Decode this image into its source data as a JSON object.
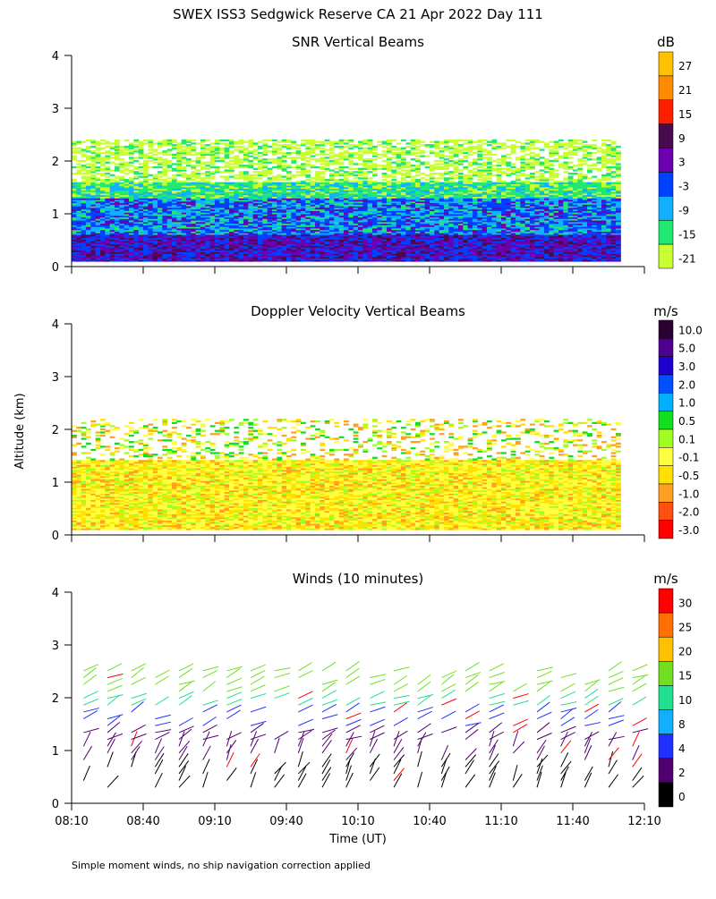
{
  "figure": {
    "title": "SWEX ISS3 Sedgwick Reserve CA  21 Apr 2022 Day 111",
    "footnote": "Simple moment winds, no ship navigation correction applied",
    "ylabel": "Altitude (km)",
    "xlabel": "Time (UT)"
  },
  "chart_data": [
    {
      "type": "heatmap",
      "title": "SNR Vertical Beams",
      "unit": "dB",
      "x_ticks": [
        "08:10",
        "08:40",
        "09:10",
        "09:40",
        "10:10",
        "10:40",
        "11:10",
        "11:40",
        "12:10"
      ],
      "xlim_minutes": [
        0,
        240
      ],
      "y_ticks": [
        "0",
        "1",
        "2",
        "3",
        "4"
      ],
      "ylim_km": [
        0,
        4
      ],
      "colorbar": {
        "labels": [
          "27",
          "21",
          "15",
          "9",
          "3",
          "-3",
          "-9",
          "-15",
          "-21"
        ],
        "colors": [
          "#ffc000",
          "#ff8c00",
          "#ff2000",
          "#4a0a50",
          "#6a00b0",
          "#0040ff",
          "#10b0ff",
          "#20e870",
          "#c8ff30"
        ]
      }
    },
    {
      "type": "heatmap",
      "title": "Doppler Velocity Vertical Beams",
      "unit": "m/s",
      "x_ticks": [
        "08:10",
        "08:40",
        "09:10",
        "09:40",
        "10:10",
        "10:40",
        "11:10",
        "11:40",
        "12:10"
      ],
      "xlim_minutes": [
        0,
        240
      ],
      "y_ticks": [
        "0",
        "1",
        "2",
        "3",
        "4"
      ],
      "ylim_km": [
        0,
        4
      ],
      "colorbar": {
        "labels": [
          "10.0",
          "5.0",
          "3.0",
          "2.0",
          "1.0",
          "0.5",
          "0.1",
          "-0.1",
          "-0.5",
          "-1.0",
          "-2.0",
          "-3.0"
        ],
        "colors": [
          "#2a0030",
          "#500090",
          "#2000d0",
          "#0050ff",
          "#00b0ff",
          "#10e020",
          "#a0ff20",
          "#ffff40",
          "#ffe000",
          "#ffa020",
          "#ff5010",
          "#ff0000"
        ]
      }
    },
    {
      "type": "scatter",
      "title": "Winds (10 minutes)",
      "unit": "m/s",
      "x_ticks": [
        "08:10",
        "08:40",
        "09:10",
        "09:40",
        "10:10",
        "10:40",
        "11:10",
        "11:40",
        "12:10"
      ],
      "xlim_minutes": [
        0,
        240
      ],
      "y_ticks": [
        "0",
        "1",
        "2",
        "3",
        "4"
      ],
      "ylim_km": [
        0,
        4
      ],
      "colorbar": {
        "labels": [
          "30",
          "25",
          "20",
          "15",
          "10",
          "8",
          "4",
          "2",
          "0"
        ],
        "colors": [
          "#ff0000",
          "#ff7000",
          "#ffc000",
          "#70e020",
          "#20e090",
          "#10b0ff",
          "#2030ff",
          "#500070",
          "#000000"
        ]
      }
    }
  ]
}
